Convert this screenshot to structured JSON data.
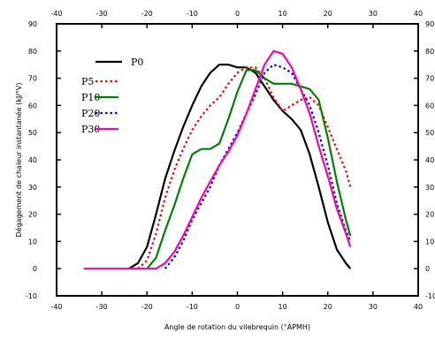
{
  "chart_data": {
    "type": "line",
    "xlabel": "Angle de rotation du vilebrequin (°APMH)",
    "ylabel": "Dégagement de chaleur instantanée (kJ/°V)",
    "xlim": [
      -40,
      40
    ],
    "ylim": [
      -10,
      90
    ],
    "xticks": [
      -40,
      -30,
      -20,
      -10,
      0,
      10,
      20,
      30,
      40
    ],
    "yticks": [
      -10,
      0,
      10,
      20,
      30,
      40,
      50,
      60,
      70,
      80,
      90
    ],
    "grid": false,
    "legend_position": "top-left",
    "series": [
      {
        "name": "P0",
        "color": "#000000",
        "dash": "solid",
        "points": [
          [
            -24,
            0
          ],
          [
            -22,
            2
          ],
          [
            -20,
            8
          ],
          [
            -18,
            20
          ],
          [
            -16,
            33
          ],
          [
            -14,
            43
          ],
          [
            -12,
            52
          ],
          [
            -10,
            60
          ],
          [
            -8,
            67
          ],
          [
            -6,
            72
          ],
          [
            -4,
            75
          ],
          [
            -2,
            75
          ],
          [
            0,
            74
          ],
          [
            2,
            74
          ],
          [
            4,
            72
          ],
          [
            6,
            67
          ],
          [
            8,
            62
          ],
          [
            10,
            58
          ],
          [
            12,
            55
          ],
          [
            14,
            51
          ],
          [
            16,
            42
          ],
          [
            18,
            30
          ],
          [
            20,
            17
          ],
          [
            22,
            7
          ],
          [
            24,
            2
          ],
          [
            25,
            0
          ]
        ]
      },
      {
        "name": "P5",
        "color": "#ff0000",
        "dash": "dot",
        "points": [
          [
            -22,
            0
          ],
          [
            -20,
            3
          ],
          [
            -18,
            13
          ],
          [
            -16,
            26
          ],
          [
            -14,
            36
          ],
          [
            -12,
            44
          ],
          [
            -10,
            51
          ],
          [
            -8,
            56
          ],
          [
            -6,
            60
          ],
          [
            -4,
            63
          ],
          [
            -2,
            68
          ],
          [
            0,
            72
          ],
          [
            2,
            74
          ],
          [
            4,
            74
          ],
          [
            6,
            70
          ],
          [
            8,
            63
          ],
          [
            10,
            58
          ],
          [
            12,
            60
          ],
          [
            14,
            62
          ],
          [
            16,
            63
          ],
          [
            18,
            60
          ],
          [
            20,
            52
          ],
          [
            22,
            44
          ],
          [
            24,
            36
          ],
          [
            25,
            30
          ]
        ]
      },
      {
        "name": "P10",
        "color": "#008000",
        "dash": "solid",
        "points": [
          [
            -20,
            0
          ],
          [
            -18,
            4
          ],
          [
            -16,
            14
          ],
          [
            -14,
            23
          ],
          [
            -12,
            33
          ],
          [
            -10,
            42
          ],
          [
            -8,
            44
          ],
          [
            -6,
            44
          ],
          [
            -4,
            46
          ],
          [
            -2,
            55
          ],
          [
            0,
            65
          ],
          [
            2,
            73
          ],
          [
            4,
            73
          ],
          [
            6,
            70
          ],
          [
            8,
            68
          ],
          [
            10,
            68
          ],
          [
            12,
            68
          ],
          [
            14,
            67
          ],
          [
            16,
            66
          ],
          [
            18,
            62
          ],
          [
            20,
            48
          ],
          [
            22,
            32
          ],
          [
            24,
            18
          ],
          [
            25,
            12
          ]
        ]
      },
      {
        "name": "P20",
        "color": "#0000ff",
        "dash": "dot",
        "points": [
          [
            -16,
            0
          ],
          [
            -14,
            4
          ],
          [
            -12,
            10
          ],
          [
            -10,
            18
          ],
          [
            -8,
            24
          ],
          [
            -6,
            30
          ],
          [
            -4,
            38
          ],
          [
            -2,
            44
          ],
          [
            0,
            50
          ],
          [
            2,
            57
          ],
          [
            4,
            64
          ],
          [
            6,
            72
          ],
          [
            8,
            75
          ],
          [
            10,
            74
          ],
          [
            12,
            72
          ],
          [
            14,
            66
          ],
          [
            16,
            60
          ],
          [
            18,
            50
          ],
          [
            20,
            38
          ],
          [
            22,
            24
          ],
          [
            24,
            14
          ],
          [
            25,
            10
          ]
        ]
      },
      {
        "name": "P30",
        "color": "#ff00aa",
        "dash": "solid",
        "points": [
          [
            -34,
            0
          ],
          [
            -18,
            0
          ],
          [
            -16,
            2
          ],
          [
            -14,
            6
          ],
          [
            -12,
            12
          ],
          [
            -10,
            19
          ],
          [
            -8,
            26
          ],
          [
            -6,
            32
          ],
          [
            -4,
            38
          ],
          [
            -2,
            43
          ],
          [
            0,
            49
          ],
          [
            2,
            57
          ],
          [
            4,
            66
          ],
          [
            6,
            75
          ],
          [
            8,
            80
          ],
          [
            10,
            79
          ],
          [
            12,
            74
          ],
          [
            14,
            66
          ],
          [
            16,
            57
          ],
          [
            18,
            45
          ],
          [
            20,
            34
          ],
          [
            22,
            22
          ],
          [
            24,
            13
          ],
          [
            25,
            8
          ]
        ]
      }
    ]
  }
}
